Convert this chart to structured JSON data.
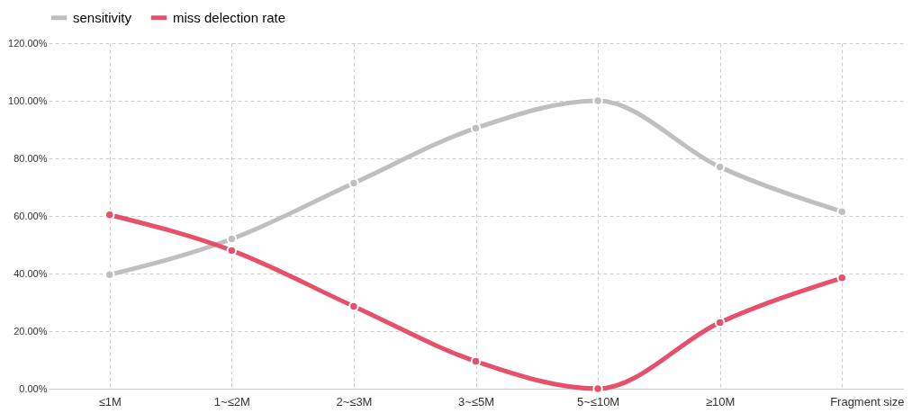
{
  "chart_data": {
    "type": "line",
    "xlabel": "Fragment size",
    "categories": [
      "≤1M",
      "1~≤2M",
      "2~≤3M",
      "3~≤5M",
      "5~≤10M",
      "≥10M",
      null
    ],
    "series": [
      {
        "name": "sensitivity",
        "color": "#bfbfbf",
        "values": [
          39.6,
          52,
          71.4,
          90.5,
          100,
          77,
          61.5
        ]
      },
      {
        "name": "miss delection rate",
        "color": "#e8506a",
        "values": [
          60.4,
          48,
          28.6,
          9.5,
          0,
          23,
          38.5
        ]
      }
    ],
    "ylim": [
      0,
      120
    ],
    "yticks": [
      {
        "value": 0,
        "label": "0.00%"
      },
      {
        "value": 20,
        "label": "20.00%"
      },
      {
        "value": 40,
        "label": "40.00%"
      },
      {
        "value": 60,
        "label": "60.00%"
      },
      {
        "value": 80,
        "label": "80.00%"
      },
      {
        "value": 100,
        "label": "100.00%"
      },
      {
        "value": 120,
        "label": "120.00%"
      }
    ],
    "grid": true,
    "legend": "top",
    "marker": "circle",
    "line_style": "solid"
  }
}
